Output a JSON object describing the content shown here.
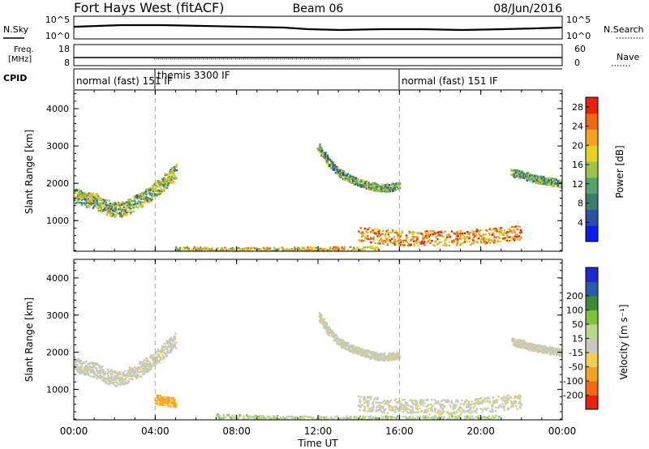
{
  "header": {
    "title": "Fort Hays West (fitACF)",
    "beam": "Beam 06",
    "date": "08/Jun/2016"
  },
  "panels": {
    "nsky": {
      "label": "N.Sky",
      "ticks": [
        "10^5",
        "10^0"
      ],
      "right_label": "N.Search",
      "right_ticks": [
        "10^5",
        "10^0"
      ]
    },
    "freq": {
      "label_line1": "Freq.",
      "label_line2": "[MHz]",
      "ticks": [
        "18",
        "8"
      ],
      "right_label": "Nave",
      "right_ticks": [
        "60",
        "0"
      ]
    },
    "cpid": {
      "label": "CPID",
      "segments": [
        {
          "name": "normal (fast) 151 IF",
          "start_hour": 0,
          "end_hour": 4
        },
        {
          "name": "themis 3300 IF",
          "start_hour": 4,
          "end_hour": 16
        },
        {
          "name": "normal (fast) 151 IF",
          "start_hour": 16,
          "end_hour": 24
        }
      ]
    }
  },
  "colors": {
    "power": [
      "#0b1cf5",
      "#2a4fa8",
      "#3b7d6e",
      "#55a36a",
      "#9bc44a",
      "#e6d21e",
      "#f4a320",
      "#f06a14",
      "#e8200c"
    ],
    "velocity": [
      "#e8200c",
      "#f06a14",
      "#f4a320",
      "#f2cf52",
      "#c8c8c0",
      "#b9d98a",
      "#7dc43c",
      "#3d8a3a",
      "#2a5aa8",
      "#1c2ad0"
    ]
  },
  "chart_data": [
    {
      "type": "heatmap",
      "title": "",
      "xlabel": "Time UT",
      "ylabel": "Slant Range [km]",
      "x_unit": "hours UT",
      "xlim": [
        0,
        24
      ],
      "ylim": [
        180,
        4500
      ],
      "xticks": [
        "00:00",
        "04:00",
        "08:00",
        "12:00",
        "16:00",
        "20:00",
        "00:00"
      ],
      "yticks": [
        1000,
        2000,
        3000,
        4000
      ],
      "colorbar": {
        "label": "Power [dB]",
        "ticks": [
          4,
          8,
          12,
          16,
          20,
          24,
          28
        ],
        "range": [
          0,
          30
        ]
      },
      "regions": [
        {
          "name": "evening arc",
          "x": [
            0.0,
            0.5,
            1.0,
            1.5,
            2.0,
            2.5,
            3.0,
            3.5,
            4.0,
            4.5,
            5.0
          ],
          "y": [
            1700,
            1600,
            1550,
            1400,
            1300,
            1350,
            1500,
            1650,
            1850,
            2100,
            2350
          ],
          "width": 400,
          "value": 14
        },
        {
          "name": "morning arc",
          "x": [
            12.0,
            12.5,
            13.0,
            13.5,
            14.0,
            14.5,
            15.0,
            15.5,
            16.0
          ],
          "y": [
            3000,
            2600,
            2300,
            2150,
            2050,
            1950,
            1900,
            1900,
            1950
          ],
          "width": 200,
          "value": 12
        },
        {
          "name": "dawn ground scatter",
          "x": [
            14.0,
            15.0,
            16.0,
            17.0,
            18.0,
            19.0,
            20.0,
            21.0,
            22.0
          ],
          "y": [
            650,
            600,
            550,
            550,
            550,
            550,
            600,
            650,
            700
          ],
          "width": 400,
          "value": 22
        },
        {
          "name": "late arc",
          "x": [
            21.5,
            22.0,
            22.5,
            23.0,
            23.5,
            24.0
          ],
          "y": [
            2300,
            2250,
            2150,
            2100,
            2050,
            2000
          ],
          "width": 200,
          "value": 12
        },
        {
          "name": "near ground scatter",
          "x": [
            5.0,
            7.0,
            9.0,
            11.0,
            13.0,
            15.0
          ],
          "y": [
            260,
            240,
            240,
            250,
            260,
            280
          ],
          "width": 120,
          "value": 18
        }
      ]
    },
    {
      "type": "heatmap",
      "title": "",
      "xlabel": "Time UT",
      "ylabel": "Slant Range [km]",
      "x_unit": "hours UT",
      "xlim": [
        0,
        24
      ],
      "ylim": [
        180,
        4500
      ],
      "xticks": [
        "00:00",
        "04:00",
        "08:00",
        "12:00",
        "16:00",
        "20:00",
        "00:00"
      ],
      "yticks": [
        1000,
        2000,
        3000,
        4000
      ],
      "colorbar": {
        "label": "Velocity [m s⁻¹]",
        "ticks": [
          -200,
          -100,
          -50,
          -15,
          15,
          50,
          100,
          200
        ]
      },
      "regions": [
        {
          "name": "evening arc",
          "x": [
            0.0,
            0.5,
            1.0,
            1.5,
            2.0,
            2.5,
            3.0,
            3.5,
            4.0,
            4.5,
            5.0
          ],
          "y": [
            1700,
            1600,
            1550,
            1400,
            1300,
            1350,
            1500,
            1650,
            1850,
            2100,
            2350
          ],
          "width": 400,
          "value": 0
        },
        {
          "name": "morning arc",
          "x": [
            12.0,
            12.5,
            13.0,
            13.5,
            14.0,
            14.5,
            15.0,
            15.5,
            16.0
          ],
          "y": [
            3000,
            2600,
            2300,
            2150,
            2050,
            1950,
            1900,
            1900,
            1950
          ],
          "width": 200,
          "value": 0
        },
        {
          "name": "dawn ground scatter",
          "x": [
            14.0,
            15.0,
            16.0,
            17.0,
            18.0,
            19.0,
            20.0,
            21.0,
            22.0
          ],
          "y": [
            650,
            600,
            550,
            550,
            550,
            550,
            600,
            650,
            700
          ],
          "width": 400,
          "value": 0
        },
        {
          "name": "late arc",
          "x": [
            21.5,
            22.0,
            22.5,
            23.0,
            23.5,
            24.0
          ],
          "y": [
            2300,
            2250,
            2150,
            2100,
            2050,
            2000
          ],
          "width": 200,
          "value": 0
        },
        {
          "name": "evening negative patch",
          "x": [
            4.0,
            4.5,
            5.0
          ],
          "y": [
            750,
            700,
            650
          ],
          "width": 250,
          "value": -60
        },
        {
          "name": "near ground scatter",
          "x": [
            7.0,
            9.0,
            11.0,
            13.0,
            15.0,
            17.0,
            19.0,
            21.0
          ],
          "y": [
            300,
            260,
            240,
            240,
            240,
            250,
            260,
            270
          ],
          "width": 120,
          "value": 30
        }
      ]
    }
  ]
}
